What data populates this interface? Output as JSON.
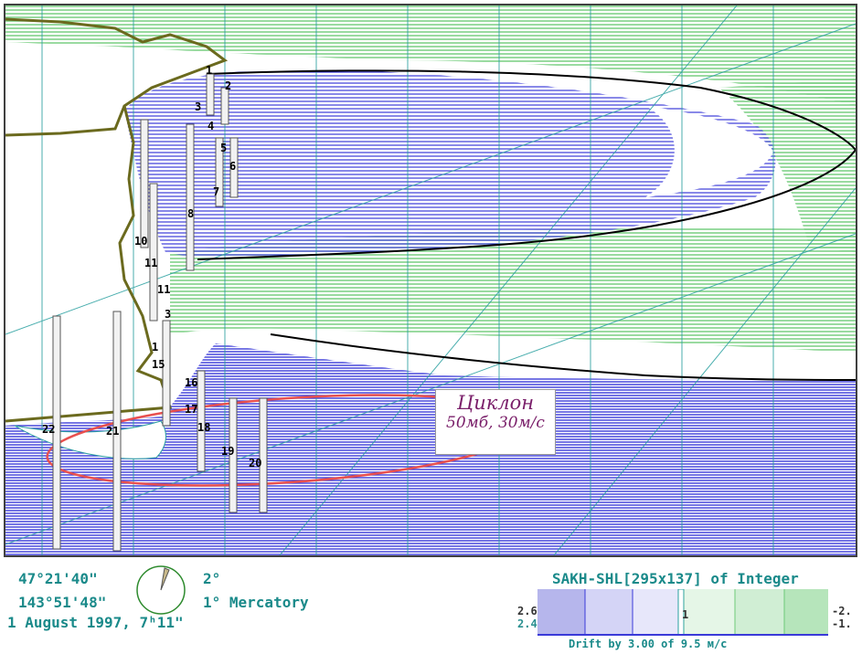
{
  "map": {
    "cyclone_title": "Циклон",
    "cyclone_subtitle": "50мб, 30м/с",
    "stations": [
      "1",
      "2",
      "3",
      "4",
      "5",
      "6",
      "7",
      "8",
      "10",
      "11",
      "11",
      "3",
      "1",
      "15",
      "16",
      "17",
      "18",
      "19",
      "20",
      "21",
      "22"
    ]
  },
  "status": {
    "latitude": "47°21'40\"",
    "longitude": "143°51'48\"",
    "datetime": "1 August 1997, 7ʰ11\"",
    "grid_step": "2°",
    "projection": "1° Mercatory"
  },
  "dataset": {
    "title": "SAKH-SHL[295x137] of Integer",
    "drift": "Drift by 3.00 of 9.5 м/с"
  },
  "legend": {
    "left_top": "2.6",
    "left_bottom": "2.4",
    "center_mark": "1",
    "right_top": "-2.",
    "right_bottom": "-1."
  },
  "colors": {
    "blue": "#3a3ad8",
    "green": "#6ecb78",
    "teal": "#2aa0a0",
    "coast": "#6b6a1e",
    "cyclone": "#e8504f",
    "label": "#7a1f6a"
  }
}
